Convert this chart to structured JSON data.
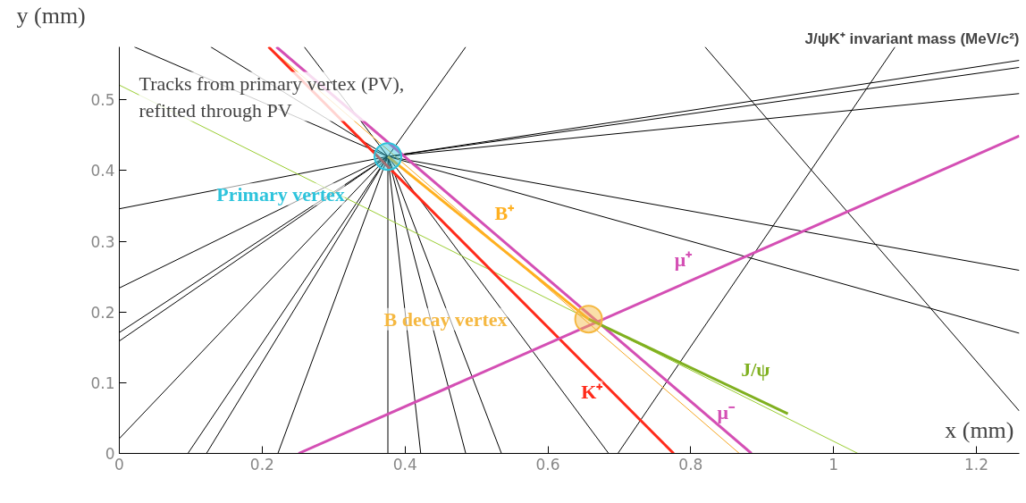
{
  "chart_data": {
    "type": "line",
    "title": "J/ψK⁺ invariant mass (MeV/c²)",
    "xlabel": "x (mm)",
    "ylabel": "y (mm)",
    "annotations": [
      "Tracks from primary vertex (PV),\nrefitted through PV"
    ],
    "xlim": [
      0,
      1.26
    ],
    "ylim": [
      0,
      0.575
    ],
    "xticks": [
      0,
      0.2,
      0.4,
      0.6,
      0.8,
      1,
      1.2
    ],
    "yticks": [
      0,
      0.1,
      0.2,
      0.3,
      0.4,
      0.5
    ],
    "grid": false,
    "marker": "none",
    "line_style": "solid",
    "series": [
      {
        "color": "#000000",
        "x": [
          0.376,
          1.26
        ],
        "values": [
          0.42,
          0.556
        ]
      },
      {
        "color": "#000000",
        "x": [
          0.376,
          1.26
        ],
        "values": [
          0.42,
          0.546
        ]
      },
      {
        "color": "#000000",
        "x": [
          0.376,
          1.26
        ],
        "values": [
          0.42,
          0.509
        ]
      },
      {
        "color": "#000000",
        "x": [
          0.376,
          1.26
        ],
        "values": [
          0.42,
          0.259
        ]
      },
      {
        "color": "#000000",
        "x": [
          0.376,
          1.26
        ],
        "values": [
          0.42,
          0.17
        ]
      },
      {
        "color": "#000000",
        "x": [
          0.376,
          0
        ],
        "values": [
          0.42,
          0.346
        ]
      },
      {
        "color": "#000000",
        "x": [
          0.376,
          0
        ],
        "values": [
          0.42,
          0.234
        ]
      },
      {
        "color": "#000000",
        "x": [
          0.376,
          0
        ],
        "values": [
          0.42,
          0.171
        ]
      },
      {
        "color": "#000000",
        "x": [
          0.376,
          0
        ],
        "values": [
          0.42,
          0.159
        ]
      },
      {
        "color": "#000000",
        "x": [
          0.376,
          0
        ],
        "values": [
          0.42,
          0.021
        ]
      },
      {
        "color": "#000000",
        "x": [
          0.376,
          0.096
        ],
        "values": [
          0.42,
          0
        ]
      },
      {
        "color": "#000000",
        "x": [
          0.376,
          0.122
        ],
        "values": [
          0.42,
          0
        ]
      },
      {
        "color": "#000000",
        "x": [
          0.376,
          0.222
        ],
        "values": [
          0.42,
          0
        ]
      },
      {
        "color": "#000000",
        "x": [
          0.376,
          0.376
        ],
        "values": [
          0.42,
          0
        ]
      },
      {
        "color": "#000000",
        "x": [
          0.376,
          0.422
        ],
        "values": [
          0.42,
          0
        ]
      },
      {
        "color": "#000000",
        "x": [
          0.376,
          0.485
        ],
        "values": [
          0.42,
          0
        ]
      },
      {
        "color": "#000000",
        "x": [
          0.376,
          0.535
        ],
        "values": [
          0.42,
          0
        ]
      },
      {
        "color": "#000000",
        "x": [
          0.376,
          0.685
        ],
        "values": [
          0.42,
          0
        ]
      },
      {
        "color": "#000000",
        "x": [
          0.376,
          0.021
        ],
        "values": [
          0.42,
          0.575
        ]
      },
      {
        "color": "#000000",
        "x": [
          0.376,
          0.128
        ],
        "values": [
          0.42,
          0.575
        ]
      },
      {
        "color": "#000000",
        "x": [
          0.376,
          0.259
        ],
        "values": [
          0.42,
          0.575
        ]
      },
      {
        "color": "#000000",
        "x": [
          0.376,
          0.485
        ],
        "values": [
          0.42,
          0.575
        ]
      },
      {
        "color": "#000000",
        "x": [
          1.086,
          0.698
        ],
        "values": [
          0.575,
          0
        ]
      },
      {
        "color": "#000000",
        "x": [
          0.82,
          1.26
        ],
        "values": [
          0.575,
          0.06
        ]
      },
      {
        "color": "#9acd32",
        "x": [
          0,
          1.034
        ],
        "values": [
          0.521,
          0
        ]
      },
      {
        "color": "#f5a623",
        "x": [
          0.209,
          0.868
        ],
        "values": [
          0.575,
          0
        ]
      },
      {
        "name": "B⁺",
        "color": "#ffb020",
        "x": [
          0.376,
          0.657
        ],
        "values": [
          0.42,
          0.19
        ]
      },
      {
        "name": "K⁺",
        "color": "#ff2a1a",
        "x": [
          0.209,
          0.776
        ],
        "values": [
          0.575,
          0
        ]
      },
      {
        "name": "μ⁺",
        "color": "#d44fb4",
        "x": [
          0.251,
          1.26
        ],
        "values": [
          0,
          0.449
        ]
      },
      {
        "name": "μ⁻",
        "color": "#d44fb4",
        "x": [
          0.22,
          0.885
        ],
        "values": [
          0.575,
          0
        ]
      },
      {
        "name": "J/ψ",
        "color": "#80b020",
        "x": [
          0.657,
          0.936
        ],
        "values": [
          0.19,
          0.056
        ]
      },
      {
        "name": "Primary vertex",
        "type": "scatter",
        "marker": "circle",
        "color": "#2ec4dc",
        "x": [
          0.376
        ],
        "values": [
          0.42
        ]
      },
      {
        "name": "B decay vertex",
        "type": "scatter",
        "marker": "circle",
        "color": "#f5b841",
        "x": [
          0.657
        ],
        "values": [
          0.19
        ]
      }
    ]
  }
}
